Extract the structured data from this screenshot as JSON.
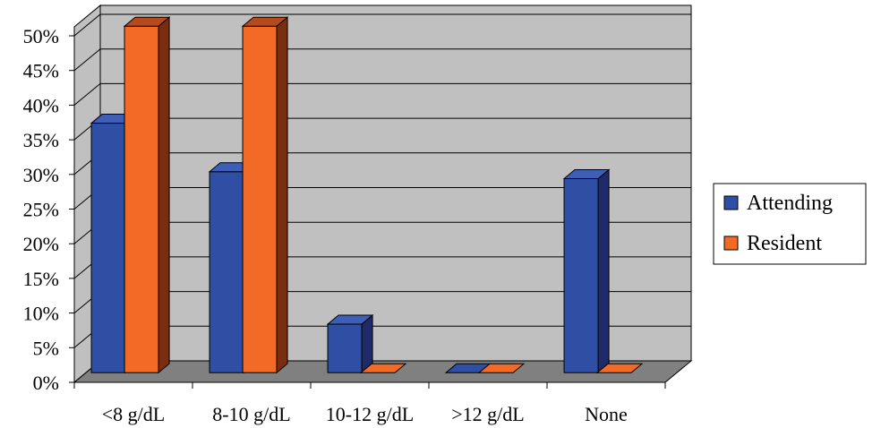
{
  "chart_data": {
    "type": "bar",
    "style": "3d-clustered-column",
    "categories": [
      "<8 g/dL",
      "8-10 g/dL",
      "10-12 g/dL",
      ">12 g/dL",
      "None"
    ],
    "series": [
      {
        "name": "Attending",
        "values": [
          36,
          29,
          7,
          0,
          28
        ]
      },
      {
        "name": "Resident",
        "values": [
          50,
          50,
          0,
          0,
          0
        ]
      }
    ],
    "y_ticks": [
      "0%",
      "5%",
      "10%",
      "15%",
      "20%",
      "25%",
      "30%",
      "35%",
      "40%",
      "45%",
      "50%"
    ],
    "ylim": [
      0,
      50
    ],
    "grid": true,
    "legend_position": "right",
    "colors": {
      "Attending": {
        "front": "#2E4FA3",
        "side": "#1E2A6A",
        "top": "#3F5FB6"
      },
      "Resident": {
        "front": "#F26A25",
        "side": "#7A2E10",
        "top": "#B54A1C"
      },
      "wall": "#C0C0C0",
      "floor": "#808080",
      "grid": "#000000"
    }
  }
}
